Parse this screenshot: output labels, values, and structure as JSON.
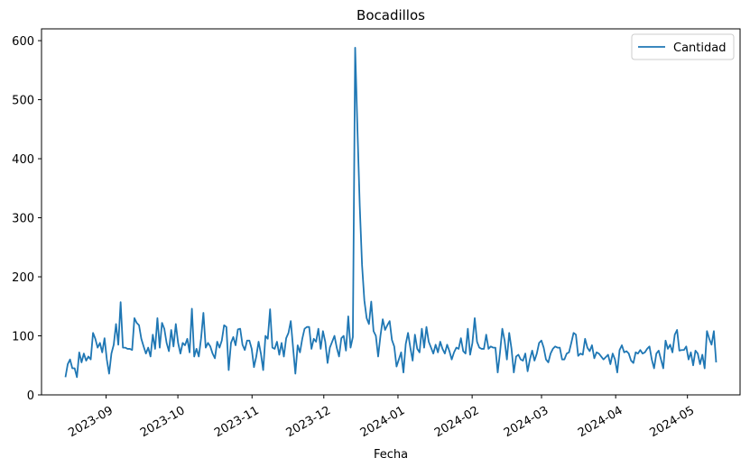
{
  "chart_data": {
    "type": "line",
    "title": "Bocadillos",
    "xlabel": "Fecha",
    "ylabel": "",
    "x_start": "2023-08-15",
    "x_end": "2024-05-13",
    "x_range": [
      "2023-08-05",
      "2024-05-23"
    ],
    "ylim": [
      0,
      620
    ],
    "yticks": [
      0,
      100,
      200,
      300,
      400,
      500,
      600
    ],
    "xticks": [
      {
        "date": "2023-09-01",
        "label": "2023-09"
      },
      {
        "date": "2023-10-01",
        "label": "2023-10"
      },
      {
        "date": "2023-11-01",
        "label": "2023-11"
      },
      {
        "date": "2023-12-01",
        "label": "2023-12"
      },
      {
        "date": "2024-01-01",
        "label": "2024-01"
      },
      {
        "date": "2024-02-01",
        "label": "2024-02"
      },
      {
        "date": "2024-03-01",
        "label": "2024-03"
      },
      {
        "date": "2024-04-01",
        "label": "2024-04"
      },
      {
        "date": "2024-05-01",
        "label": "2024-05"
      }
    ],
    "grid": false,
    "legend_position": "top-right",
    "series": [
      {
        "name": "Cantidad",
        "color": "#1f77b4",
        "values": [
          30,
          52,
          60,
          45,
          45,
          30,
          72,
          55,
          70,
          58,
          65,
          60,
          105,
          95,
          80,
          88,
          72,
          96,
          60,
          36,
          70,
          85,
          120,
          85,
          157,
          80,
          80,
          78,
          78,
          76,
          130,
          122,
          118,
          95,
          82,
          70,
          80,
          65,
          102,
          78,
          130,
          80,
          122,
          112,
          88,
          74,
          110,
          82,
          120,
          88,
          70,
          88,
          84,
          95,
          72,
          146,
          65,
          78,
          65,
          96,
          139,
          80,
          88,
          82,
          70,
          62,
          90,
          80,
          92,
          118,
          115,
          42,
          88,
          98,
          84,
          111,
          112,
          85,
          76,
          92,
          92,
          78,
          47,
          65,
          90,
          70,
          42,
          100,
          95,
          145,
          80,
          78,
          90,
          68,
          88,
          65,
          96,
          105,
          125,
          80,
          36,
          84,
          72,
          95,
          112,
          115,
          115,
          78,
          95,
          90,
          112,
          78,
          108,
          90,
          54,
          80,
          90,
          100,
          80,
          65,
          96,
          100,
          75,
          133,
          80,
          98,
          588,
          450,
          320,
          220,
          160,
          130,
          120,
          158,
          108,
          100,
          65,
          100,
          128,
          110,
          118,
          125,
          93,
          82,
          48,
          60,
          72,
          38,
          86,
          105,
          80,
          58,
          102,
          78,
          72,
          112,
          80,
          115,
          90,
          80,
          70,
          85,
          72,
          90,
          78,
          70,
          85,
          74,
          60,
          72,
          80,
          78,
          96,
          74,
          70,
          112,
          68,
          88,
          130,
          90,
          80,
          78,
          78,
          102,
          78,
          82,
          80,
          80,
          38,
          72,
          112,
          92,
          60,
          105,
          78,
          38,
          65,
          68,
          60,
          58,
          70,
          40,
          60,
          75,
          58,
          70,
          88,
          92,
          80,
          60,
          55,
          70,
          78,
          82,
          80,
          80,
          60,
          60,
          70,
          72,
          88,
          105,
          102,
          66,
          70,
          68,
          95,
          80,
          74,
          84,
          62,
          72,
          70,
          65,
          60,
          64,
          68,
          52,
          70,
          60,
          38,
          76,
          84,
          72,
          74,
          70,
          58,
          54,
          72,
          70,
          76,
          70,
          72,
          78,
          82,
          60,
          45,
          70,
          75,
          60,
          45,
          92,
          78,
          85,
          72,
          102,
          110,
          75,
          76,
          76,
          82,
          60,
          72,
          50,
          75,
          70,
          52,
          68,
          45,
          108,
          95,
          85,
          108,
          55
        ]
      }
    ]
  }
}
